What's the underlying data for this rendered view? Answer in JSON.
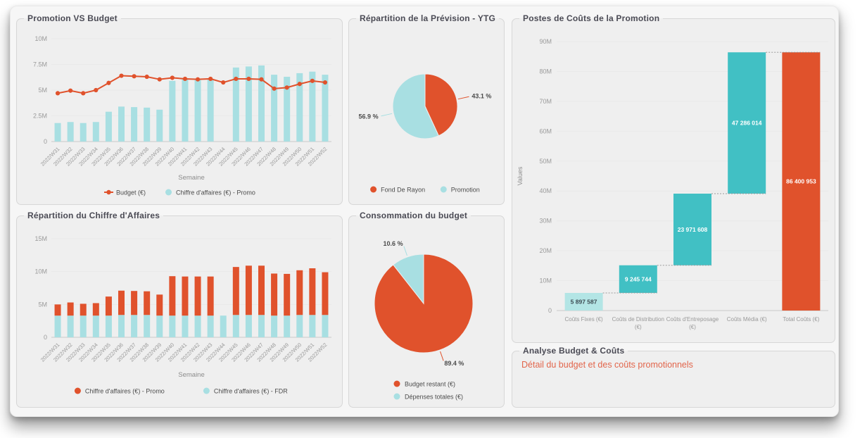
{
  "colors": {
    "orange": "#e0522c",
    "teal": "#41c0c4",
    "teal_light": "#a8dfe2",
    "teal_pale": "#b3e5e5",
    "link": "#e2654b",
    "axis_text": "#9a9a9a",
    "label_text": "#555555"
  },
  "panels": {
    "analyse": {
      "title": "Analyse Budget & Coûts",
      "link_label": "Détail du budget et des coûts promotionnels"
    }
  },
  "chart_data": [
    {
      "id": "promo_vs_budget",
      "type": "bar",
      "subtype": "combo_bar_line",
      "title": "Promotion VS Budget",
      "xlabel": "Semaine",
      "unit": "millions €",
      "ylim": [
        0,
        10
      ],
      "ytick_values": [
        0,
        2.5,
        5,
        7.5,
        10
      ],
      "ytick_labels": [
        "0",
        "2.5M",
        "5M",
        "7.5M",
        "10M"
      ],
      "categories": [
        "2022/W31",
        "2022/W32",
        "2022/W33",
        "2022/W34",
        "2022/W35",
        "2022/W36",
        "2022/W37",
        "2022/W38",
        "2022/W39",
        "2022/W40",
        "2022/W41",
        "2022/W42",
        "2022/W43",
        "2022/W44",
        "2022/W45",
        "2022/W46",
        "2022/W47",
        "2022/W48",
        "2022/W49",
        "2022/W50",
        "2022/W51",
        "2022/W52"
      ],
      "series": [
        {
          "name": "Budget (€)",
          "type": "line",
          "color_key": "orange",
          "legend_marker": "line-dot",
          "values": [
            4.7,
            4.95,
            4.7,
            5.0,
            5.7,
            6.4,
            6.35,
            6.3,
            6.05,
            6.2,
            6.1,
            6.05,
            6.1,
            5.75,
            6.1,
            6.1,
            6.05,
            5.15,
            5.25,
            5.6,
            5.9,
            5.75
          ]
        },
        {
          "name": "Chiffre d'affaires (€) - Promo",
          "type": "bar",
          "color_key": "teal_light",
          "legend_marker": "dot",
          "values": [
            1.8,
            1.9,
            1.8,
            1.9,
            2.9,
            3.4,
            3.35,
            3.3,
            3.1,
            5.9,
            6.1,
            6.0,
            6.1,
            null,
            7.2,
            7.3,
            7.4,
            6.5,
            6.3,
            6.65,
            6.8,
            6.5
          ]
        }
      ],
      "legend_position": "bottom"
    },
    {
      "id": "repartition_ca",
      "type": "bar",
      "subtype": "stacked_bar",
      "title": "Répartition du Chiffre d'Affaires",
      "xlabel": "Semaine",
      "unit": "millions €",
      "ylim": [
        0,
        15
      ],
      "ytick_values": [
        0,
        5,
        10,
        15
      ],
      "ytick_labels": [
        "0",
        "5M",
        "10M",
        "15M"
      ],
      "categories": [
        "2022/W31",
        "2022/W32",
        "2022/W33",
        "2022/W34",
        "2022/W35",
        "2022/W36",
        "2022/W37",
        "2022/W38",
        "2022/W39",
        "2022/W40",
        "2022/W41",
        "2022/W42",
        "2022/W43",
        "2022/W44",
        "2022/W45",
        "2022/W46",
        "2022/W47",
        "2022/W48",
        "2022/W49",
        "2022/W50",
        "2022/W51",
        "2022/W52"
      ],
      "series": [
        {
          "name": "Chiffre d'affaires (€) - Promo",
          "type": "bar",
          "stack": "top",
          "color_key": "orange",
          "legend_marker": "dot",
          "values": [
            1.7,
            2.0,
            1.8,
            1.9,
            2.9,
            3.7,
            3.65,
            3.6,
            3.2,
            6.0,
            5.95,
            5.95,
            5.95,
            0,
            7.3,
            7.5,
            7.5,
            6.4,
            6.35,
            6.8,
            7.1,
            6.5
          ]
        },
        {
          "name": "Chiffre d'affaires (€) - FDR",
          "type": "bar",
          "stack": "base",
          "color_key": "teal_light",
          "legend_marker": "dot",
          "values": [
            3.3,
            3.3,
            3.3,
            3.3,
            3.3,
            3.4,
            3.4,
            3.4,
            3.3,
            3.3,
            3.3,
            3.3,
            3.3,
            3.3,
            3.4,
            3.4,
            3.4,
            3.3,
            3.3,
            3.4,
            3.4,
            3.4
          ]
        }
      ],
      "legend_position": "bottom"
    },
    {
      "id": "prevision_ytg",
      "type": "pie",
      "title": "Répartition de la Prévision - YTG",
      "slices": [
        {
          "label": "Fond De Rayon",
          "pct": 43.1,
          "pct_label": "43.1 %",
          "color_key": "orange"
        },
        {
          "label": "Promotion",
          "pct": 56.9,
          "pct_label": "56.9 %",
          "color_key": "teal_light"
        }
      ],
      "legend_layout": "horizontal"
    },
    {
      "id": "consommation_budget",
      "type": "pie",
      "title": "Consommation du budget",
      "slices": [
        {
          "label": "Budget restant (€)",
          "pct": 89.4,
          "pct_label": "89.4 %",
          "color_key": "orange"
        },
        {
          "label": "Dépenses totales (€)",
          "pct": 10.6,
          "pct_label": "10.6 %",
          "color_key": "teal_light"
        }
      ],
      "legend_layout": "vertical"
    },
    {
      "id": "postes_couts",
      "type": "waterfall",
      "title": "Postes de Coûts de la Promotion",
      "ylabel": "Values",
      "ylim": [
        0,
        90000000
      ],
      "ytick_values": [
        0,
        10,
        20,
        30,
        40,
        50,
        60,
        70,
        80,
        90
      ],
      "ytick_labels": [
        "0",
        "10M",
        "20M",
        "30M",
        "40M",
        "50M",
        "60M",
        "70M",
        "80M",
        "90M"
      ],
      "categories": [
        "Coûts Fixes (€)",
        "Coûts de Distribution (€)",
        "Coûts d'Entreposage (€)",
        "Coûts Média (€)",
        "Total Coûts (€)"
      ],
      "category_lines": [
        [
          "Coûts Fixes (€)"
        ],
        [
          "Coûts de Distribution",
          "(€)"
        ],
        [
          "Coûts d'Entreposage",
          "(€)"
        ],
        [
          "Coûts Média (€)"
        ],
        [
          "Total Coûts (€)"
        ]
      ],
      "values": [
        5897587,
        9245744,
        23971608,
        47286014,
        86400953
      ],
      "value_labels": [
        "5 897 587",
        "9 245 744",
        "23 971 608",
        "47 286 014",
        "86 400 953"
      ],
      "is_total": [
        false,
        false,
        false,
        false,
        true
      ],
      "bar_colors": [
        "teal_pale",
        "teal",
        "teal",
        "teal",
        "orange"
      ],
      "label_colors": [
        "dark",
        "white",
        "white",
        "white",
        "white"
      ]
    }
  ]
}
